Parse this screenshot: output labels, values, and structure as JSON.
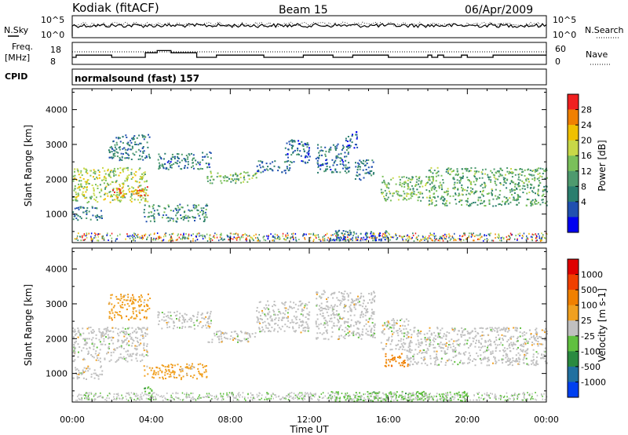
{
  "header": {
    "station": "Kodiak (fitACF)",
    "beam": "Beam 15",
    "date": "06/Apr/2009"
  },
  "summary_panel_1": {
    "left_label": "N.Sky",
    "right_label": "N.Search",
    "left_ticks": [
      "10^5",
      "10^0"
    ],
    "right_ticks": [
      "10^5",
      "10^0"
    ]
  },
  "summary_panel_2": {
    "left_label_1": "Freq.",
    "left_label_2": "[MHz]",
    "right_label": "Nave",
    "left_ticks": [
      "18",
      "8"
    ],
    "right_ticks": [
      "60",
      "0"
    ],
    "freq_steps": [
      {
        "t": 0.0,
        "f": 11.2
      },
      {
        "t": 0.2,
        "f": 12.2
      },
      {
        "t": 2.0,
        "f": 11.2
      },
      {
        "t": 3.7,
        "f": 13.3
      },
      {
        "t": 4.3,
        "f": 14.3
      },
      {
        "t": 5.0,
        "f": 13.3
      },
      {
        "t": 6.3,
        "f": 11.2
      },
      {
        "t": 7.3,
        "f": 12.2
      },
      {
        "t": 9.7,
        "f": 11.2
      },
      {
        "t": 11.7,
        "f": 12.2
      },
      {
        "t": 13.2,
        "f": 11.2
      },
      {
        "t": 14.2,
        "f": 12.2
      },
      {
        "t": 16.0,
        "f": 11.2
      },
      {
        "t": 18.0,
        "f": 12.2
      },
      {
        "t": 18.2,
        "f": 11.2
      },
      {
        "t": 18.5,
        "f": 12.2
      },
      {
        "t": 18.8,
        "f": 11.2
      },
      {
        "t": 19.0,
        "f": 11.2
      },
      {
        "t": 19.7,
        "f": 12.2
      },
      {
        "t": 20.0,
        "f": 11.2
      },
      {
        "t": 21.3,
        "f": 12.2
      },
      {
        "t": 24.0,
        "f": 12.2
      }
    ]
  },
  "cpid": {
    "label": "CPID",
    "text": "normalsound (fast) 157"
  },
  "chart_data": [
    {
      "type": "heatmap",
      "name": "power",
      "ylabel": "Slant Range [km]",
      "xlabel": "",
      "xlim": [
        0,
        24
      ],
      "ylim": [
        180,
        4600
      ],
      "yticks": [
        1000,
        2000,
        3000,
        4000
      ],
      "colorbar_label": "Power [dB]",
      "colorbar_ticks": [
        "28",
        "24",
        "20",
        "16",
        "12",
        "8",
        "4"
      ],
      "colorbar_range": [
        0,
        32
      ],
      "colors": [
        "#0000f0",
        "#2050b0",
        "#2a7e6e",
        "#4e9a6e",
        "#7ac05a",
        "#c8d848",
        "#f0c000",
        "#f08000",
        "#f02020"
      ],
      "regions": [
        {
          "t0": 0.0,
          "t1": 3.8,
          "r0": 1350,
          "r1": 2350,
          "level": 18
        },
        {
          "t0": 1.9,
          "t1": 3.8,
          "r0": 1500,
          "r1": 1800,
          "level": 27
        },
        {
          "t0": 0.0,
          "t1": 1.5,
          "r0": 850,
          "r1": 1250,
          "level": 8
        },
        {
          "t0": 1.8,
          "t1": 3.9,
          "r0": 2550,
          "r1": 3300,
          "level": 8
        },
        {
          "t0": 3.6,
          "t1": 6.8,
          "r0": 800,
          "r1": 1300,
          "level": 10
        },
        {
          "t0": 4.3,
          "t1": 7.0,
          "r0": 2300,
          "r1": 2800,
          "level": 7
        },
        {
          "t0": 6.8,
          "t1": 9.3,
          "r0": 1900,
          "r1": 2250,
          "level": 15
        },
        {
          "t0": 9.3,
          "t1": 11.0,
          "r0": 2200,
          "r1": 2550,
          "level": 7
        },
        {
          "t0": 10.7,
          "t1": 12.0,
          "r0": 2450,
          "r1": 3150,
          "level": 6
        },
        {
          "t0": 12.3,
          "t1": 14.0,
          "r0": 2200,
          "r1": 3050,
          "level": 7
        },
        {
          "t0": 13.8,
          "t1": 14.4,
          "r0": 2900,
          "r1": 3400,
          "level": 6
        },
        {
          "t0": 14.3,
          "t1": 15.3,
          "r0": 2000,
          "r1": 2600,
          "level": 8
        },
        {
          "t0": 15.6,
          "t1": 17.0,
          "r0": 1400,
          "r1": 2100,
          "level": 16
        },
        {
          "t0": 16.9,
          "t1": 18.3,
          "r0": 1400,
          "r1": 2100,
          "level": 15
        },
        {
          "t0": 18.0,
          "t1": 24.0,
          "r0": 1250,
          "r1": 2350,
          "level": 13
        },
        {
          "t0": 13.0,
          "t1": 16.0,
          "r0": 250,
          "r1": 550,
          "level": 6
        }
      ]
    },
    {
      "type": "heatmap",
      "name": "velocity",
      "ylabel": "Slant Range [km]",
      "xlabel": "Time UT",
      "xlim": [
        0,
        24
      ],
      "ylim": [
        180,
        4600
      ],
      "xticks": [
        "00:00",
        "04:00",
        "08:00",
        "12:00",
        "16:00",
        "20:00",
        "00:00"
      ],
      "yticks": [
        1000,
        2000,
        3000,
        4000
      ],
      "colorbar_label": "Velocity [m s-1]",
      "colorbar_ticks": [
        "1000",
        "500",
        "100",
        "25",
        "-25",
        "-100",
        "-500",
        "-1000"
      ],
      "colors": [
        "#0040f0",
        "#2070a0",
        "#2a8a40",
        "#60c040",
        "#c0c0c0",
        "#f0a020",
        "#f08000",
        "#f04000",
        "#e00000"
      ],
      "regions": [
        {
          "t0": 0.0,
          "t1": 3.8,
          "r0": 1350,
          "r1": 2350,
          "level": 4
        },
        {
          "t0": 0.0,
          "t1": 1.5,
          "r0": 850,
          "r1": 1250,
          "level": 4
        },
        {
          "t0": 1.8,
          "t1": 3.9,
          "r0": 2550,
          "r1": 3300,
          "level": 5
        },
        {
          "t0": 3.6,
          "t1": 6.8,
          "r0": 850,
          "r1": 1300,
          "level": 5
        },
        {
          "t0": 3.6,
          "t1": 4.0,
          "r0": 400,
          "r1": 700,
          "level": 3
        },
        {
          "t0": 4.3,
          "t1": 7.0,
          "r0": 2300,
          "r1": 2800,
          "level": 4
        },
        {
          "t0": 6.8,
          "t1": 9.3,
          "r0": 1900,
          "r1": 2250,
          "level": 4
        },
        {
          "t0": 9.3,
          "t1": 12.0,
          "r0": 2200,
          "r1": 3100,
          "level": 4
        },
        {
          "t0": 12.3,
          "t1": 15.3,
          "r0": 2000,
          "r1": 3400,
          "level": 4
        },
        {
          "t0": 15.6,
          "t1": 17.0,
          "r0": 1700,
          "r1": 2600,
          "level": 4
        },
        {
          "t0": 15.8,
          "t1": 17.0,
          "r0": 1200,
          "r1": 1600,
          "level": 6
        },
        {
          "t0": 16.9,
          "t1": 24.0,
          "r0": 1250,
          "r1": 2350,
          "level": 4
        },
        {
          "t0": 13.0,
          "t1": 20.0,
          "r0": 220,
          "r1": 500,
          "level": 3
        }
      ]
    }
  ]
}
